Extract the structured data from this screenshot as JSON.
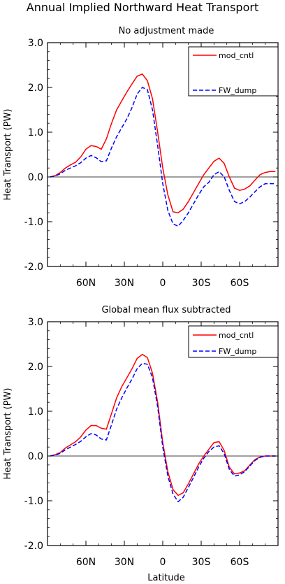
{
  "page": {
    "title": "Annual Implied Northward Heat Transport"
  },
  "colors": {
    "mod_cntl": "#ff0000",
    "FW_dump": "#0000ff",
    "axis": "#000000"
  },
  "chart_data": [
    {
      "type": "line",
      "title": "No adjustment made",
      "xlabel": "",
      "ylabel": "Heat Transport (PW)",
      "xlim": [
        90,
        -90
      ],
      "ylim": [
        -2.0,
        3.0
      ],
      "yticks": [
        "3.0",
        "2.0",
        "1.0",
        "0.0",
        "-1.0",
        "-2.0"
      ],
      "ytick_values": [
        3,
        2,
        1,
        0,
        -1,
        -2
      ],
      "xticks": [
        "60N",
        "30N",
        "0",
        "30S",
        "60S"
      ],
      "xtick_values": [
        60,
        30,
        0,
        -30,
        -60
      ],
      "zero_line": true,
      "legend_position": "top-right",
      "series": [
        {
          "name": "mod_cntl",
          "style": "solid",
          "color": "#ff0000",
          "x": [
            88,
            84,
            80,
            76,
            72,
            68,
            64,
            60,
            56,
            52,
            48,
            44,
            40,
            36,
            32,
            28,
            24,
            20,
            16,
            12,
            8,
            4,
            0,
            -4,
            -8,
            -12,
            -16,
            -20,
            -24,
            -28,
            -32,
            -36,
            -40,
            -44,
            -48,
            -52,
            -56,
            -60,
            -64,
            -68,
            -72,
            -76,
            -80,
            -84,
            -88
          ],
          "values": [
            0.0,
            0.03,
            0.1,
            0.2,
            0.27,
            0.33,
            0.45,
            0.62,
            0.7,
            0.68,
            0.62,
            0.85,
            1.2,
            1.5,
            1.7,
            1.9,
            2.08,
            2.25,
            2.3,
            2.15,
            1.75,
            1.0,
            0.2,
            -0.4,
            -0.78,
            -0.8,
            -0.72,
            -0.55,
            -0.35,
            -0.15,
            0.05,
            0.2,
            0.35,
            0.42,
            0.3,
            0.0,
            -0.25,
            -0.3,
            -0.27,
            -0.2,
            -0.07,
            0.05,
            0.1,
            0.12,
            0.12
          ]
        },
        {
          "name": "FW_dump",
          "style": "dashed",
          "color": "#0000ff",
          "x": [
            88,
            84,
            80,
            76,
            72,
            68,
            64,
            60,
            56,
            52,
            48,
            44,
            40,
            36,
            32,
            28,
            24,
            20,
            16,
            12,
            8,
            4,
            0,
            -4,
            -8,
            -12,
            -16,
            -20,
            -24,
            -28,
            -32,
            -36,
            -40,
            -44,
            -48,
            -52,
            -56,
            -60,
            -64,
            -68,
            -72,
            -76,
            -80,
            -84,
            -88
          ],
          "values": [
            0.0,
            0.02,
            0.07,
            0.15,
            0.2,
            0.25,
            0.32,
            0.42,
            0.48,
            0.43,
            0.34,
            0.36,
            0.65,
            0.9,
            1.1,
            1.3,
            1.55,
            1.85,
            2.0,
            1.95,
            1.5,
            0.7,
            -0.15,
            -0.75,
            -1.05,
            -1.1,
            -0.97,
            -0.8,
            -0.6,
            -0.4,
            -0.22,
            -0.12,
            0.05,
            0.12,
            0.0,
            -0.3,
            -0.55,
            -0.6,
            -0.55,
            -0.45,
            -0.33,
            -0.22,
            -0.15,
            -0.15,
            -0.15
          ]
        }
      ]
    },
    {
      "type": "line",
      "title": "Global mean flux subtracted",
      "xlabel": "Latitude",
      "ylabel": "Heat Transport (PW)",
      "xlim": [
        90,
        -90
      ],
      "ylim": [
        -2.0,
        3.0
      ],
      "yticks": [
        "3.0",
        "2.0",
        "1.0",
        "0.0",
        "-1.0",
        "-2.0"
      ],
      "ytick_values": [
        3,
        2,
        1,
        0,
        -1,
        -2
      ],
      "xticks": [
        "60N",
        "30N",
        "0",
        "30S",
        "60S"
      ],
      "xtick_values": [
        60,
        30,
        0,
        -30,
        -60
      ],
      "zero_line": true,
      "legend_position": "top-right",
      "series": [
        {
          "name": "mod_cntl",
          "style": "solid",
          "color": "#ff0000",
          "x": [
            88,
            84,
            80,
            76,
            72,
            68,
            64,
            60,
            56,
            52,
            48,
            44,
            40,
            36,
            32,
            28,
            24,
            20,
            16,
            12,
            8,
            4,
            0,
            -4,
            -8,
            -12,
            -16,
            -20,
            -24,
            -28,
            -32,
            -36,
            -40,
            -44,
            -48,
            -52,
            -56,
            -60,
            -64,
            -68,
            -72,
            -76,
            -80,
            -84,
            -88
          ],
          "values": [
            0.0,
            0.03,
            0.08,
            0.18,
            0.25,
            0.32,
            0.43,
            0.58,
            0.68,
            0.68,
            0.62,
            0.6,
            0.95,
            1.3,
            1.55,
            1.75,
            1.95,
            2.18,
            2.27,
            2.2,
            1.85,
            1.2,
            0.3,
            -0.35,
            -0.75,
            -0.88,
            -0.82,
            -0.62,
            -0.4,
            -0.18,
            0.0,
            0.15,
            0.3,
            0.32,
            0.12,
            -0.25,
            -0.4,
            -0.38,
            -0.33,
            -0.2,
            -0.08,
            -0.02,
            0.0,
            0.0,
            0.0
          ]
        },
        {
          "name": "FW_dump",
          "style": "dashed",
          "color": "#0000ff",
          "x": [
            88,
            84,
            80,
            76,
            72,
            68,
            64,
            60,
            56,
            52,
            48,
            44,
            40,
            36,
            32,
            28,
            24,
            20,
            16,
            12,
            8,
            4,
            0,
            -4,
            -8,
            -12,
            -16,
            -20,
            -24,
            -28,
            -32,
            -36,
            -40,
            -44,
            -48,
            -52,
            -56,
            -60,
            -64,
            -68,
            -72,
            -76,
            -80,
            -84,
            -88
          ],
          "values": [
            0.0,
            0.02,
            0.06,
            0.14,
            0.2,
            0.26,
            0.33,
            0.43,
            0.5,
            0.47,
            0.38,
            0.36,
            0.7,
            1.05,
            1.3,
            1.52,
            1.72,
            1.95,
            2.07,
            2.05,
            1.75,
            1.1,
            0.2,
            -0.45,
            -0.85,
            -1.02,
            -0.92,
            -0.7,
            -0.48,
            -0.25,
            -0.05,
            0.1,
            0.2,
            0.23,
            0.05,
            -0.3,
            -0.45,
            -0.42,
            -0.35,
            -0.22,
            -0.1,
            -0.03,
            0.0,
            0.0,
            0.0
          ]
        }
      ]
    }
  ]
}
